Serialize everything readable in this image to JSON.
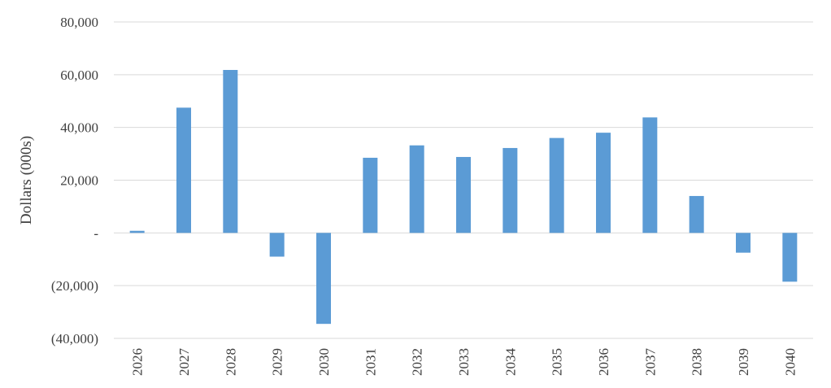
{
  "chart_data": {
    "type": "bar",
    "title": "",
    "xlabel": "",
    "ylabel": "Dollars (000s)",
    "categories": [
      "2026",
      "2027",
      "2028",
      "2029",
      "2030",
      "2031",
      "2032",
      "2033",
      "2034",
      "2035",
      "2036",
      "2037",
      "2038",
      "2039",
      "2040"
    ],
    "series": [
      {
        "values": [
          800,
          47500,
          61800,
          -9000,
          -34500,
          28500,
          33200,
          28800,
          32200,
          36000,
          38000,
          43800,
          14000,
          -7500,
          -18500
        ],
        "color": "#5b9bd5"
      }
    ],
    "ylim": [
      -40000,
      80000
    ],
    "yticks": [
      80000,
      60000,
      40000,
      20000,
      0,
      -20000,
      -40000
    ],
    "ytick_labels": [
      "80,000",
      "60,000",
      "40,000",
      "20,000",
      "-",
      "(20,000)",
      "(40,000)"
    ],
    "grid": true,
    "legend": "none"
  }
}
